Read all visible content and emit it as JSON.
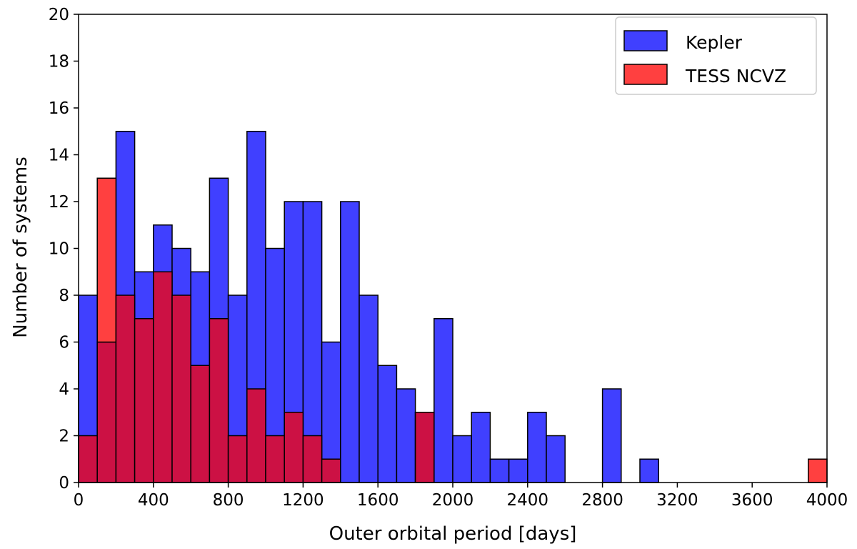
{
  "chart_data": {
    "type": "bar",
    "title": "",
    "xlabel": "Outer orbital period [days]",
    "ylabel": "Number of systems",
    "xlim": [
      0,
      4000
    ],
    "ylim": [
      0,
      20
    ],
    "bin_width": 100,
    "x_ticks": [
      "0",
      "400",
      "800",
      "1200",
      "1600",
      "2000",
      "2400",
      "2800",
      "3200",
      "3600",
      "4000"
    ],
    "y_ticks": [
      "0",
      "2",
      "4",
      "6",
      "8",
      "10",
      "12",
      "14",
      "16",
      "18",
      "20"
    ],
    "grid": false,
    "legend_position": "top-right",
    "series": [
      {
        "name": "Kepler",
        "color": "#4040ff",
        "bin_starts": [
          0,
          100,
          200,
          300,
          400,
          500,
          600,
          700,
          800,
          900,
          1000,
          1100,
          1200,
          1300,
          1400,
          1500,
          1600,
          1700,
          1800,
          1900,
          2000,
          2100,
          2200,
          2300,
          2400,
          2500,
          2600,
          2700,
          2800,
          2900,
          3000,
          3100,
          3200,
          3300,
          3400,
          3500,
          3600,
          3700,
          3800,
          3900
        ],
        "values": [
          8,
          6,
          15,
          9,
          11,
          10,
          9,
          13,
          8,
          15,
          10,
          12,
          12,
          6,
          12,
          8,
          5,
          4,
          3,
          7,
          2,
          3,
          1,
          1,
          3,
          2,
          0,
          0,
          4,
          0,
          1,
          0,
          0,
          0,
          0,
          0,
          0,
          0,
          0,
          0
        ]
      },
      {
        "name": "TESS NCVZ",
        "color": "#ff4040",
        "bin_starts": [
          0,
          100,
          200,
          300,
          400,
          500,
          600,
          700,
          800,
          900,
          1000,
          1100,
          1200,
          1300,
          1400,
          1500,
          1600,
          1700,
          1800,
          1900,
          2000,
          2100,
          2200,
          2300,
          2400,
          2500,
          2600,
          2700,
          2800,
          2900,
          3000,
          3100,
          3200,
          3300,
          3400,
          3500,
          3600,
          3700,
          3800,
          3900
        ],
        "values": [
          2,
          13,
          8,
          7,
          9,
          8,
          5,
          7,
          2,
          4,
          2,
          3,
          2,
          1,
          0,
          0,
          0,
          0,
          3,
          0,
          0,
          0,
          0,
          0,
          0,
          0,
          0,
          0,
          0,
          0,
          0,
          0,
          0,
          0,
          0,
          0,
          0,
          0,
          0,
          1
        ]
      }
    ],
    "overlap_color": "#cc1144"
  }
}
